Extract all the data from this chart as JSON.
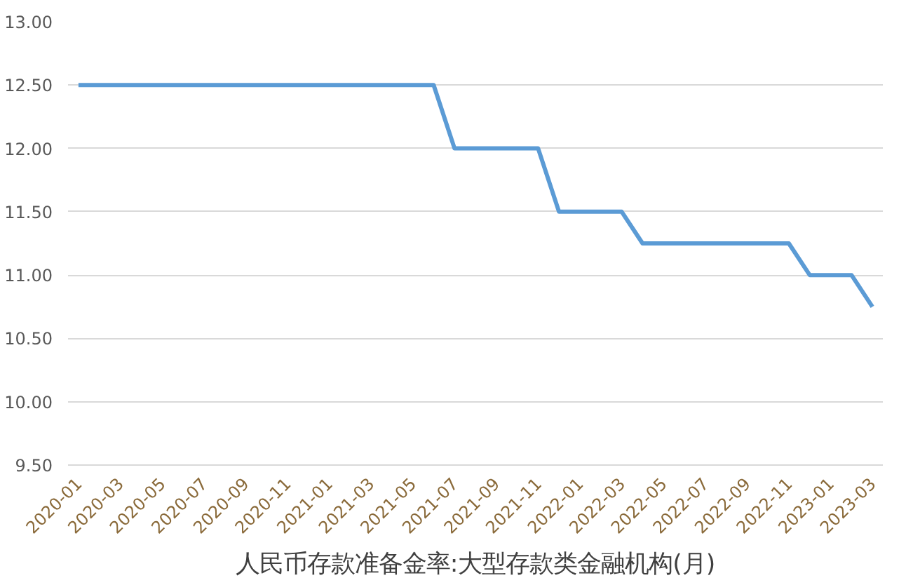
{
  "chart_data": {
    "type": "line",
    "xlabel": "人民币存款准备金率:大型存款类金融机构(月)",
    "categories": [
      "2020-01",
      null,
      "2020-03",
      null,
      "2020-05",
      null,
      "2020-07",
      null,
      "2020-09",
      null,
      "2020-11",
      null,
      "2021-01",
      null,
      "2021-03",
      null,
      "2021-05",
      null,
      "2021-07",
      null,
      "2021-09",
      null,
      "2021-11",
      null,
      "2022-01",
      null,
      "2022-03",
      null,
      "2022-05",
      null,
      "2022-07",
      null,
      "2022-09",
      null,
      "2022-11",
      null,
      "2023-01",
      null,
      "2023-03"
    ],
    "series": [
      {
        "color": "#5b9bd5",
        "values": [
          12.5,
          12.5,
          12.5,
          12.5,
          12.5,
          12.5,
          12.5,
          12.5,
          12.5,
          12.5,
          12.5,
          12.5,
          12.5,
          12.5,
          12.5,
          12.5,
          12.5,
          12.5,
          12.0,
          12.0,
          12.0,
          12.0,
          12.0,
          11.5,
          11.5,
          11.5,
          11.5,
          11.25,
          11.25,
          11.25,
          11.25,
          11.25,
          11.25,
          11.25,
          11.25,
          11.0,
          11.0,
          11.0,
          10.75
        ]
      }
    ],
    "ylim": [
      9.5,
      13.0
    ],
    "yticks": [
      {
        "value": 9.5,
        "label": "9.50"
      },
      {
        "value": 10.0,
        "label": "10.00"
      },
      {
        "value": 10.5,
        "label": "10.50"
      },
      {
        "value": 11.0,
        "label": "11.00"
      },
      {
        "value": 11.5,
        "label": "11.50"
      },
      {
        "value": 12.0,
        "label": "12.00"
      },
      {
        "value": 12.5,
        "label": "12.50"
      },
      {
        "value": 13.0,
        "label": "13.00"
      }
    ],
    "grid": "y",
    "line_style": "solid",
    "marker": "none"
  }
}
